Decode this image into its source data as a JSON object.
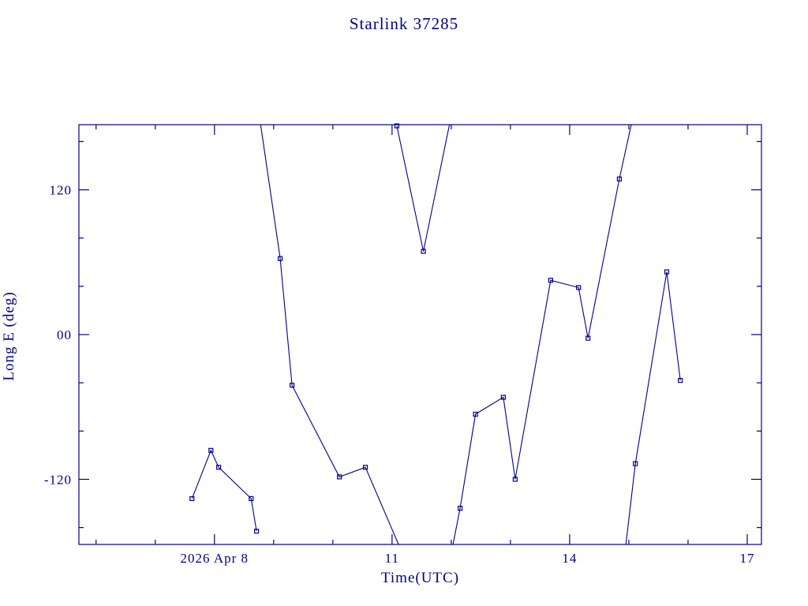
{
  "chart_data": {
    "type": "line",
    "title": "Starlink 37285",
    "xlabel": "Time(UTC)",
    "ylabel": "Long E (deg)",
    "line_color": "#00008B",
    "background": "#ffffff",
    "grid": false,
    "legend": false,
    "x_unit": "day of 2026 April (UTC)",
    "xlim": [
      5.71,
      17.24
    ],
    "ylim": [
      -174,
      174
    ],
    "x_major_ticks": [
      {
        "value": 8,
        "label": "2026 Apr 8"
      },
      {
        "value": 11,
        "label": "11"
      },
      {
        "value": 14,
        "label": "14"
      },
      {
        "value": 17,
        "label": "17"
      }
    ],
    "y_major_ticks": [
      {
        "value": -120,
        "label": "-120"
      },
      {
        "value": 0,
        "label": "00"
      },
      {
        "value": 120,
        "label": "120"
      }
    ],
    "x_minor_step": 1,
    "y_minor_step": 40,
    "segments": [
      {
        "line": [
          [
            7.62,
            -136
          ],
          [
            7.94,
            -96
          ],
          [
            8.07,
            -110
          ],
          [
            8.62,
            -136
          ],
          [
            8.71,
            -163
          ]
        ],
        "markers": [
          [
            7.62,
            -136
          ],
          [
            7.94,
            -96
          ],
          [
            8.07,
            -110
          ],
          [
            8.62,
            -136
          ],
          [
            8.71,
            -163
          ]
        ]
      },
      {
        "line": [
          [
            8.78,
            174
          ],
          [
            9.11,
            63
          ],
          [
            9.31,
            -42
          ],
          [
            10.11,
            -118
          ],
          [
            10.55,
            -110
          ],
          [
            11.11,
            -174
          ]
        ],
        "markers": [
          [
            9.11,
            63
          ],
          [
            9.31,
            -42
          ],
          [
            10.11,
            -118
          ],
          [
            10.55,
            -110
          ]
        ]
      },
      {
        "line": [
          [
            11.08,
            173
          ],
          [
            11.53,
            69
          ],
          [
            11.97,
            174
          ]
        ],
        "markers": [
          [
            11.08,
            173
          ],
          [
            11.53,
            69
          ]
        ]
      },
      {
        "line": [
          [
            12.03,
            -174
          ],
          [
            12.15,
            -144
          ],
          [
            12.41,
            -66
          ],
          [
            12.88,
            -52
          ],
          [
            13.08,
            -120
          ],
          [
            13.68,
            45
          ],
          [
            14.15,
            39
          ],
          [
            14.31,
            -3
          ],
          [
            14.84,
            129
          ],
          [
            15.04,
            174
          ]
        ],
        "markers": [
          [
            12.15,
            -144
          ],
          [
            12.41,
            -66
          ],
          [
            12.88,
            -52
          ],
          [
            13.08,
            -120
          ],
          [
            13.68,
            45
          ],
          [
            14.15,
            39
          ],
          [
            14.31,
            -3
          ],
          [
            14.84,
            129
          ]
        ]
      },
      {
        "line": [
          [
            14.95,
            -174
          ],
          [
            15.11,
            -107
          ],
          [
            15.64,
            52
          ],
          [
            15.87,
            -38
          ]
        ],
        "markers": [
          [
            15.11,
            -107
          ],
          [
            15.64,
            52
          ],
          [
            15.87,
            -38
          ]
        ]
      }
    ]
  }
}
